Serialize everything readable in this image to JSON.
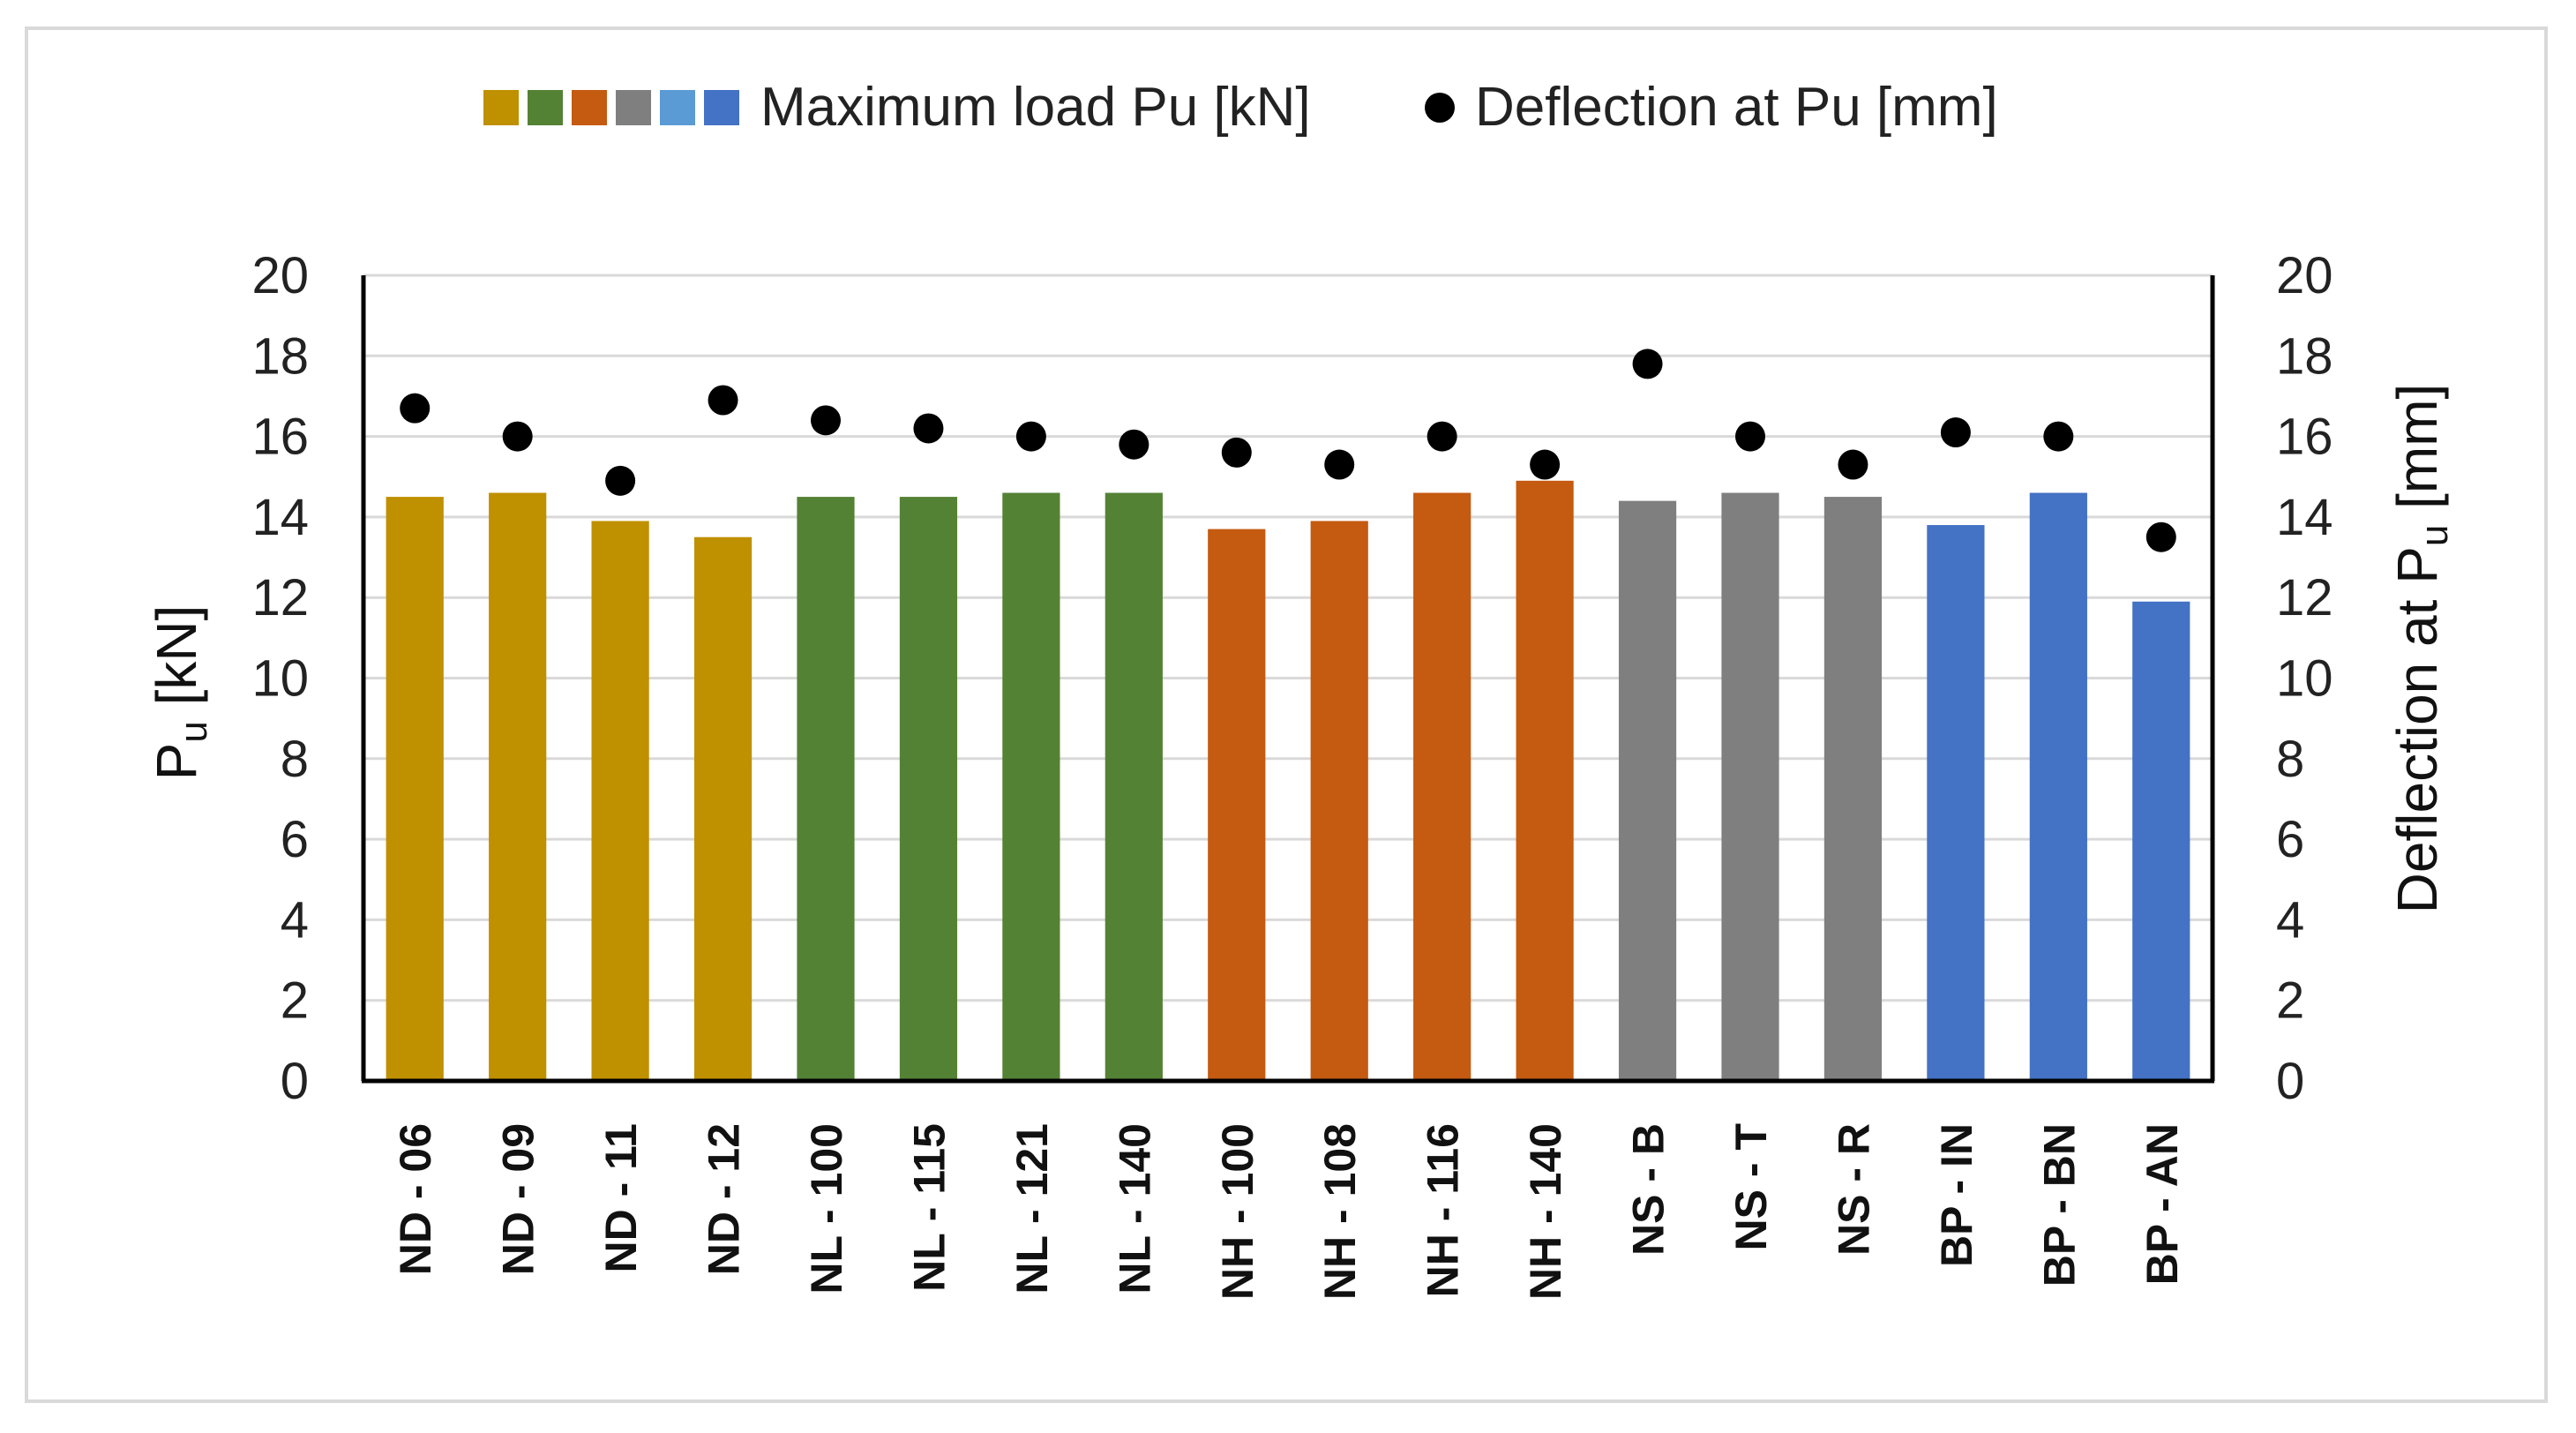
{
  "chart_data": {
    "type": "bar",
    "categories": [
      "ND - 06",
      "ND - 09",
      "ND - 11",
      "ND - 12",
      "NL - 100",
      "NL - 115",
      "NL - 121",
      "NL - 140",
      "NH - 100",
      "NH - 108",
      "NH - 116",
      "NH - 140",
      "NS - B",
      "NS - T",
      "NS - R",
      "BP - IN",
      "BP - BN",
      "BP - AN"
    ],
    "groups": [
      "ND",
      "ND",
      "ND",
      "ND",
      "NL",
      "NL",
      "NL",
      "NL",
      "NH",
      "NH",
      "NH",
      "NH",
      "NS",
      "NS",
      "NS",
      "BP",
      "BP",
      "BP"
    ],
    "group_colors": {
      "ND": "#bf9000",
      "NL": "#548235",
      "NH": "#c55a11",
      "NS": "#7f7f7f",
      "BP": "#4472c4"
    },
    "series": [
      {
        "name": "Maximum load Pu [kN]",
        "kind": "bar",
        "axis": "left",
        "values": [
          14.5,
          14.6,
          13.9,
          13.5,
          14.5,
          14.5,
          14.6,
          14.6,
          13.7,
          13.9,
          14.6,
          14.9,
          14.4,
          14.6,
          14.5,
          13.8,
          14.6,
          11.9
        ]
      },
      {
        "name": "Deflection at Pu [mm]",
        "kind": "scatter",
        "axis": "right",
        "values": [
          16.7,
          16.0,
          14.9,
          16.9,
          16.4,
          16.2,
          16.0,
          15.8,
          15.6,
          15.3,
          16.0,
          15.3,
          17.8,
          16.0,
          15.3,
          16.1,
          16.0,
          13.5
        ]
      }
    ],
    "legend": {
      "bar_swatch_colors": [
        "#bf9000",
        "#548235",
        "#c55a11",
        "#7f7f7f",
        "#5b9bd5",
        "#4472c4"
      ],
      "bar_label": "Maximum load Pu [kN]",
      "scatter_label": "Deflection at Pu [mm]",
      "position": "top-center"
    },
    "y_left": {
      "label_main": "P",
      "label_sub": "u",
      "label_rest": " [kN]",
      "min": 0,
      "max": 20,
      "step": 2,
      "ticks": [
        "0",
        "2",
        "4",
        "6",
        "8",
        "10",
        "12",
        "14",
        "16",
        "18",
        "20"
      ]
    },
    "y_right": {
      "label_main": "Deflection at P",
      "label_sub": "u",
      "label_rest": " [mm]",
      "min": 0,
      "max": 20,
      "step": 2,
      "ticks": [
        "0",
        "2",
        "4",
        "6",
        "8",
        "10",
        "12",
        "14",
        "16",
        "18",
        "20"
      ]
    },
    "grid": true
  }
}
